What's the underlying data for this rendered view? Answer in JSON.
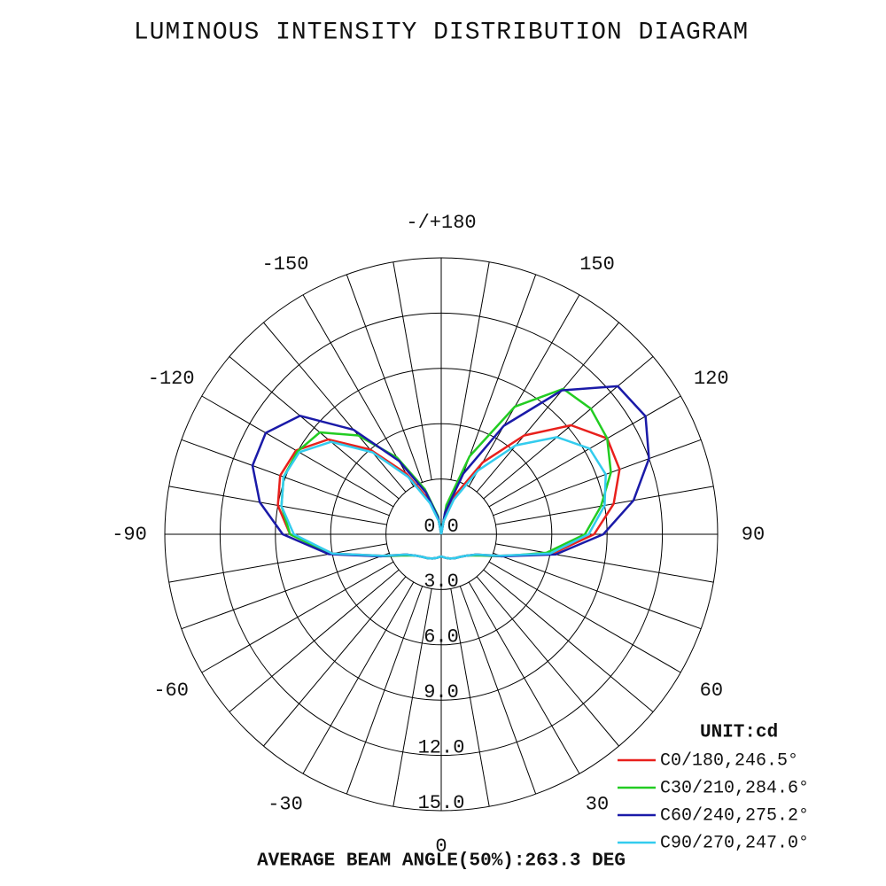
{
  "chart_data": {
    "type": "polar",
    "title": "LUMINOUS INTENSITY DISTRIBUTION DIAGRAM",
    "unit_label": "UNIT:cd",
    "footer": "AVERAGE BEAM ANGLE(50%):263.3 DEG",
    "rlim": [
      0,
      15
    ],
    "rticks": [
      {
        "value": 0,
        "label": "0.0"
      },
      {
        "value": 3,
        "label": "3.0"
      },
      {
        "value": 6,
        "label": "6.0"
      },
      {
        "value": 9,
        "label": "9.0"
      },
      {
        "value": 12,
        "label": "12.0"
      },
      {
        "value": 15,
        "label": "15.0"
      }
    ],
    "angle_ticks": [
      {
        "value": 180,
        "label": "-/+180"
      },
      150,
      120,
      90,
      60,
      30,
      0,
      -30,
      -60,
      -90,
      -120,
      -150
    ],
    "angle_grid_step": 10,
    "x": [
      -180,
      -170,
      -160,
      -150,
      -140,
      -130,
      -120,
      -110,
      -100,
      -90,
      -80,
      -70,
      -60,
      -50,
      -40,
      -30,
      -20,
      -10,
      0,
      10,
      20,
      30,
      40,
      50,
      60,
      70,
      80,
      90,
      100,
      110,
      120,
      130,
      140,
      150,
      160,
      170,
      180
    ],
    "series": [
      {
        "name": "C0/180,246.5°",
        "color": "#e8201c",
        "values": [
          0,
          0.8,
          2.0,
          3.8,
          6.0,
          8.0,
          9.1,
          9.3,
          9.0,
          8.2,
          6.0,
          3.4,
          2.2,
          1.8,
          1.6,
          1.5,
          1.4,
          1.3,
          1.2,
          1.3,
          1.4,
          1.5,
          1.6,
          1.8,
          2.2,
          3.4,
          6.1,
          8.3,
          9.5,
          10.3,
          10.4,
          9.2,
          7.0,
          4.5,
          2.3,
          0.8,
          0
        ]
      },
      {
        "name": "C30/210,284.6°",
        "color": "#22cc22",
        "values": [
          0,
          1.0,
          2.6,
          4.8,
          7.0,
          8.6,
          9.0,
          9.1,
          8.8,
          8.2,
          6.1,
          3.5,
          2.3,
          1.8,
          1.6,
          1.5,
          1.4,
          1.3,
          1.2,
          1.3,
          1.4,
          1.5,
          1.6,
          1.8,
          2.3,
          3.5,
          5.8,
          7.8,
          8.8,
          9.8,
          10.4,
          10.6,
          10.3,
          8.0,
          4.5,
          1.6,
          0
        ]
      },
      {
        "name": "C60/240,275.2°",
        "color": "#1a1aa8",
        "values": [
          0,
          0.9,
          2.4,
          4.6,
          7.4,
          10.0,
          11.0,
          10.9,
          10.0,
          8.6,
          6.2,
          3.5,
          2.2,
          1.8,
          1.6,
          1.5,
          1.4,
          1.3,
          1.2,
          1.3,
          1.4,
          1.5,
          1.6,
          1.8,
          2.2,
          3.5,
          6.3,
          8.8,
          10.6,
          12.0,
          12.8,
          12.5,
          10.2,
          6.8,
          3.5,
          1.2,
          0
        ]
      },
      {
        "name": "C90/270,247.0°",
        "color": "#33ccee",
        "values": [
          0,
          0.7,
          1.8,
          3.6,
          5.8,
          7.8,
          8.9,
          9.1,
          8.8,
          8.0,
          6.0,
          3.4,
          2.2,
          1.8,
          1.6,
          1.5,
          1.4,
          1.3,
          1.2,
          1.3,
          1.4,
          1.5,
          1.6,
          1.8,
          2.2,
          3.4,
          6.0,
          8.0,
          9.0,
          9.5,
          9.3,
          8.2,
          6.3,
          4.0,
          2.0,
          0.7,
          0
        ]
      }
    ]
  }
}
